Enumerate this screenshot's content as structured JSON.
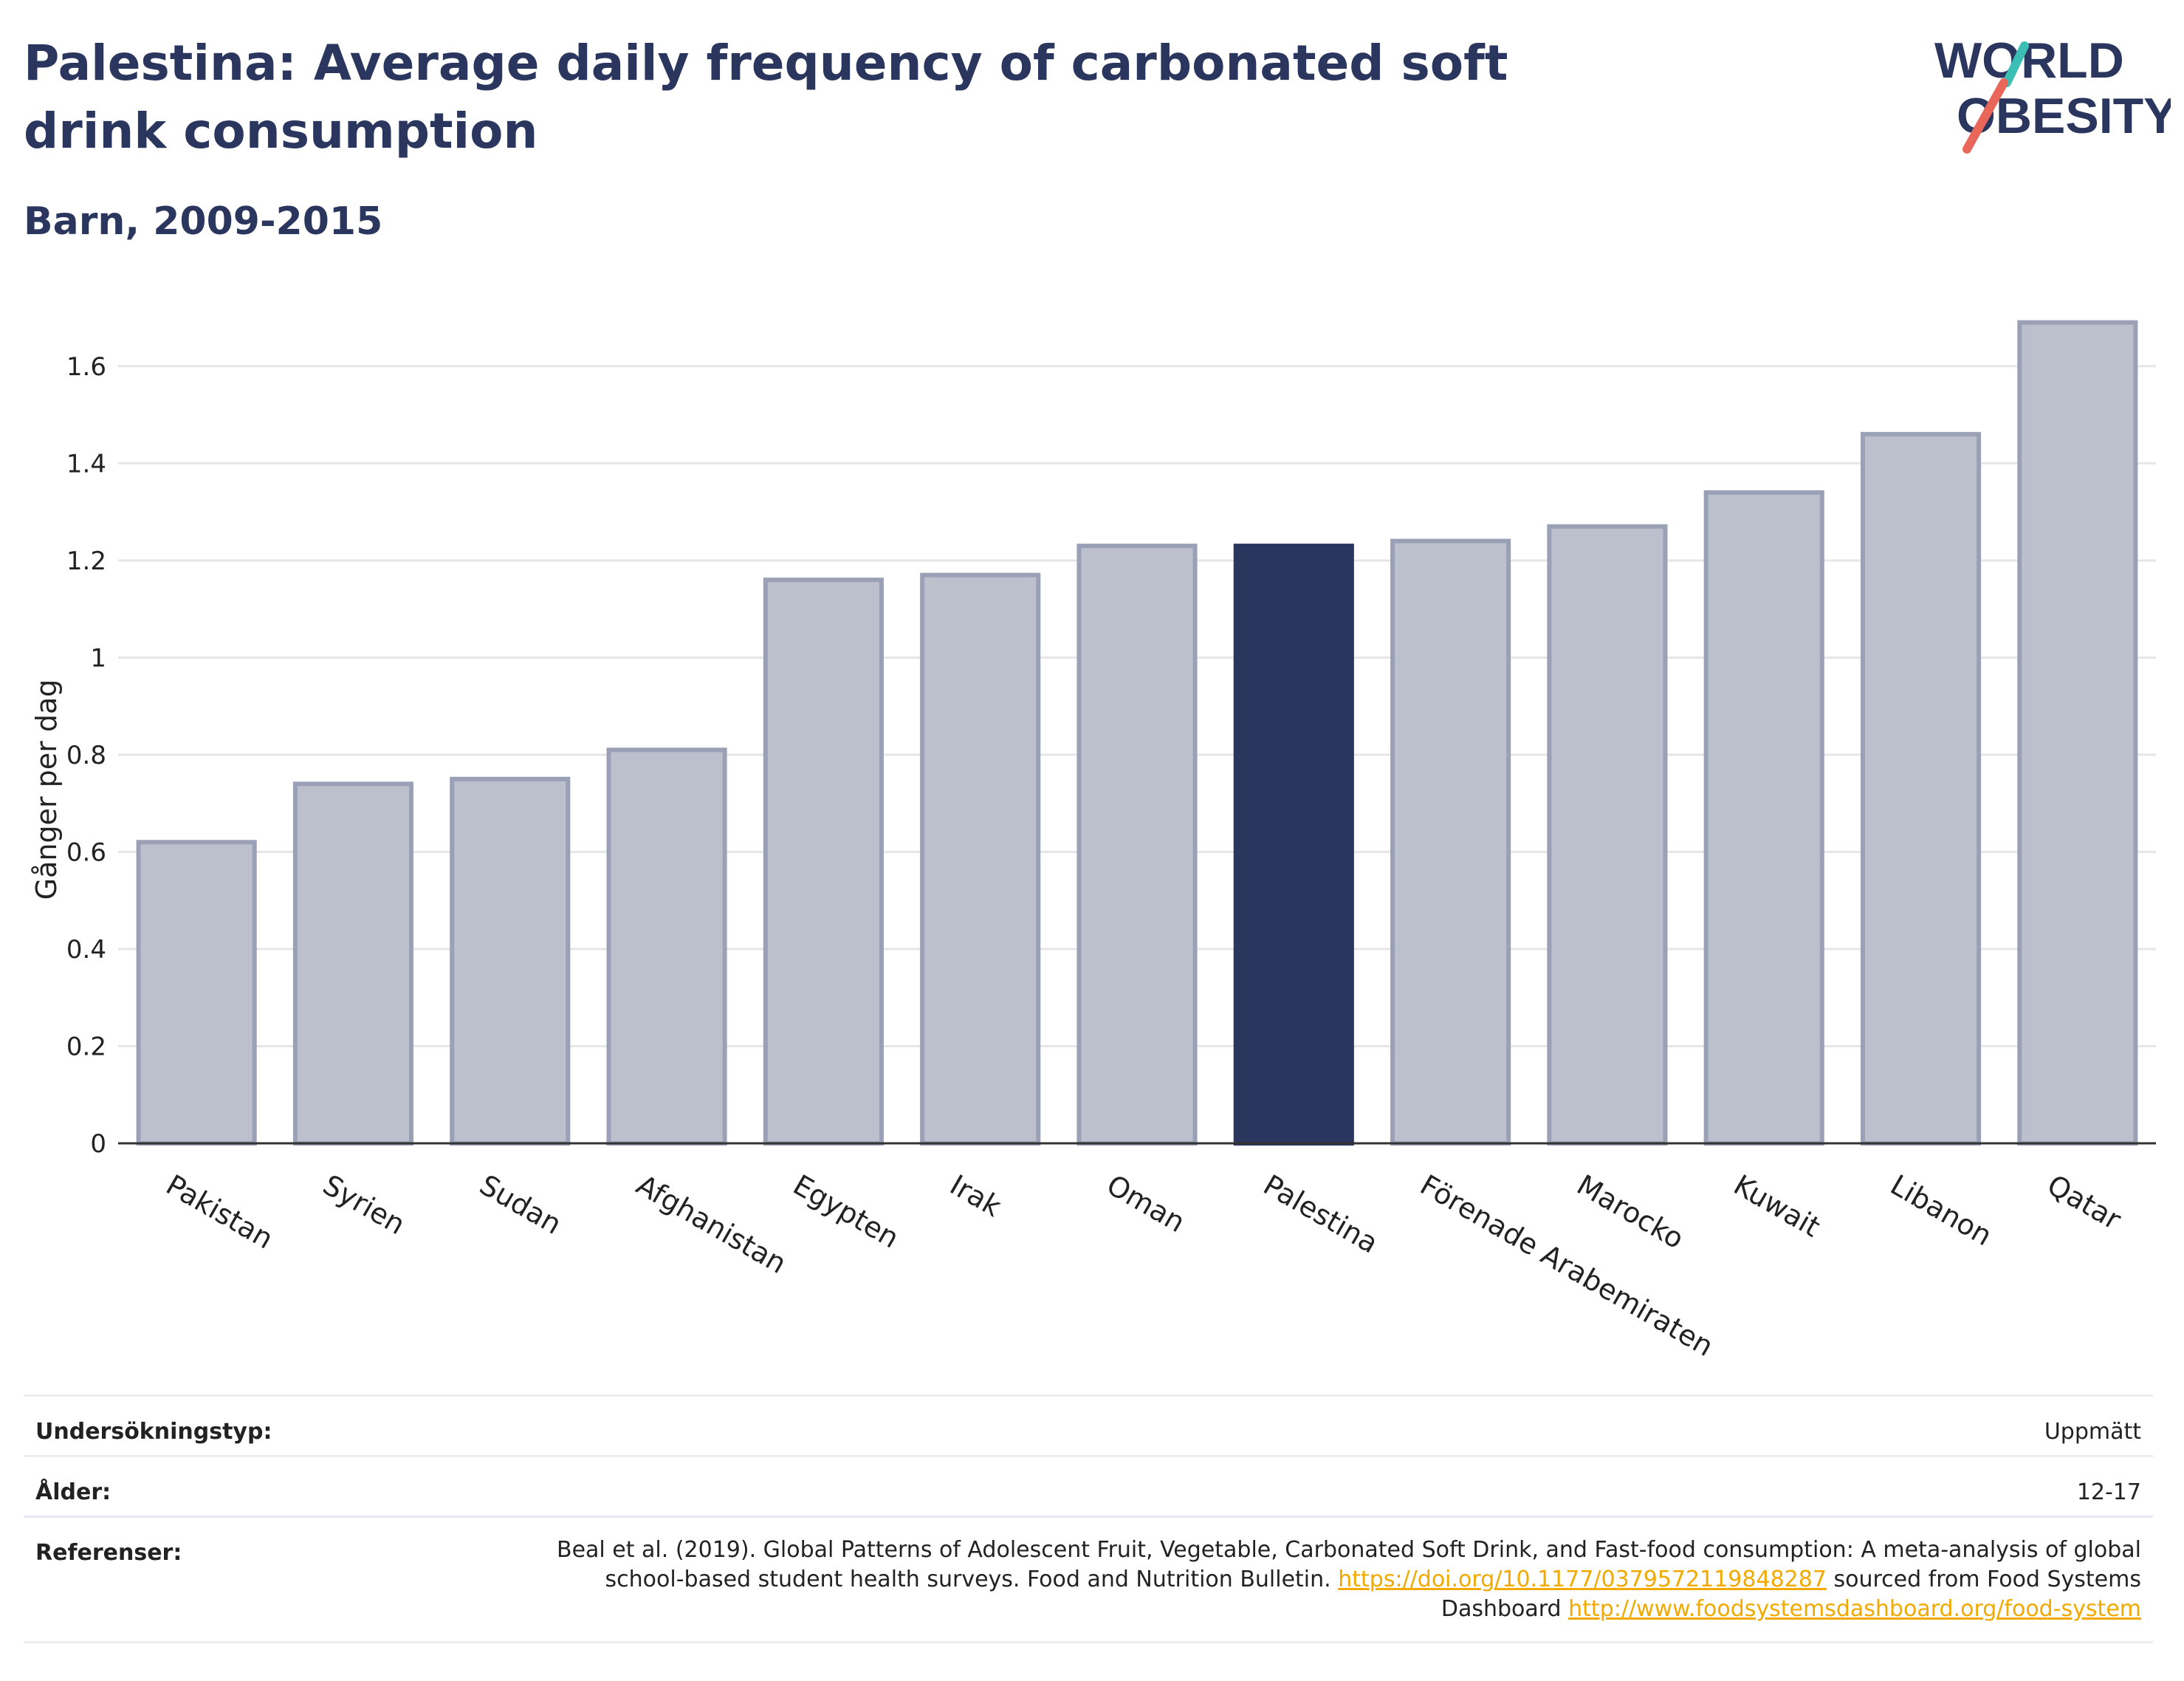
{
  "header": {
    "title": "Palestina: Average daily frequency of carbonated soft drink consumption",
    "subtitle": "Barn, 2009-2015"
  },
  "logo": {
    "line1": "WORLD",
    "line2": "OBESITY"
  },
  "colors": {
    "highlight": "#2b365e",
    "bar_fill": "#bcc0cd",
    "bar_stroke": "#9aa0b5",
    "title": "#2b365e",
    "logo_teal": "#3bbfb5",
    "logo_coral": "#e8675a",
    "link": "#f2a900"
  },
  "chart_data": {
    "type": "bar",
    "categories": [
      "Pakistan",
      "Syrien",
      "Sudan",
      "Afghanistan",
      "Egypten",
      "Irak",
      "Oman",
      "Palestina",
      "Förenade Arabemiraten",
      "Marocko",
      "Kuwait",
      "Libanon",
      "Qatar"
    ],
    "values": [
      0.62,
      0.74,
      0.75,
      0.81,
      1.16,
      1.17,
      1.23,
      1.23,
      1.24,
      1.27,
      1.34,
      1.46,
      1.69
    ],
    "highlight": "Palestina",
    "ylabel": "Gånger per dag",
    "ylim": [
      0,
      1.7
    ],
    "yticks": [
      0,
      0.2,
      0.4,
      0.6,
      0.8,
      1,
      1.2,
      1.4,
      1.6
    ],
    "ytick_labels": [
      "0",
      "0.2",
      "0.4",
      "0.6",
      "0.8",
      "1",
      "1.2",
      "1.4",
      "1.6"
    ],
    "grid": true
  },
  "footer": {
    "survey_type": {
      "label": "Undersökningstyp:",
      "value": "Uppmätt"
    },
    "age": {
      "label": "Ålder:",
      "value": "12-17"
    },
    "references": {
      "label": "Referenser:",
      "text1": "Beal et al. (2019). Global Patterns of Adolescent Fruit, Vegetable, Carbonated Soft Drink, and Fast-food consumption: A meta-analysis of global school-based student health surveys. Food and Nutrition Bulletin.",
      "link1": "https://doi.org/10.1177/0379572119848287",
      "text2": "sourced from Food Systems Dashboard",
      "link2": "http://www.foodsystemsdashboard.org/food-system"
    }
  }
}
